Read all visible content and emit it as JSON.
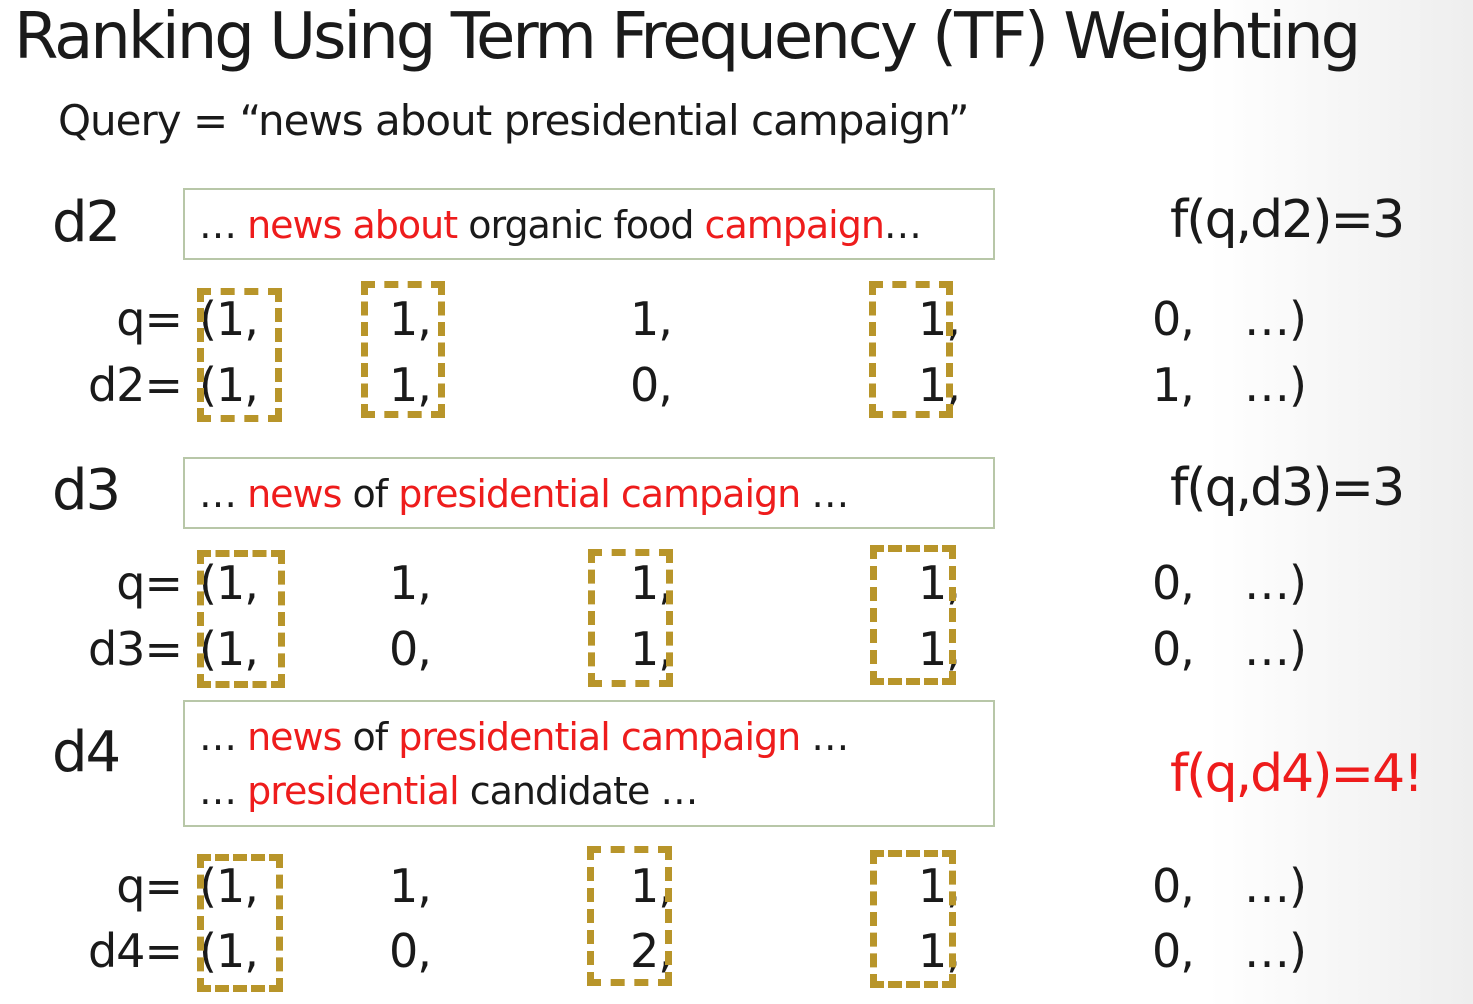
{
  "title": "Ranking Using Term Frequency (TF) Weighting",
  "query": "Query = “news about presidential campaign”",
  "docs": [
    {
      "label": "d2",
      "snippet_lines": [
        [
          {
            "text": "… ",
            "hl": false
          },
          {
            "text": "news about",
            "hl": true
          },
          {
            "text": " organic food ",
            "hl": false
          },
          {
            "text": "campaign",
            "hl": true
          },
          {
            "text": "…",
            "hl": false
          }
        ]
      ],
      "score": "f(q,d2)=3",
      "score_highlight": false,
      "q_label": "q=",
      "d_label": "d2=",
      "q_values": [
        "(1,",
        "1,",
        "1,",
        "1,",
        "0,",
        "…)"
      ],
      "d_values": [
        "(1,",
        "1,",
        "0,",
        "1,",
        "1,",
        "…)"
      ]
    },
    {
      "label": "d3",
      "snippet_lines": [
        [
          {
            "text": "… ",
            "hl": false
          },
          {
            "text": "news",
            "hl": true
          },
          {
            "text": " of ",
            "hl": false
          },
          {
            "text": "presidential campaign",
            "hl": true
          },
          {
            "text": " …",
            "hl": false
          }
        ]
      ],
      "score": "f(q,d3)=3",
      "score_highlight": false,
      "q_label": "q=",
      "d_label": "d3=",
      "q_values": [
        "(1,",
        "1,",
        "1,",
        "1,",
        "0,",
        "…)"
      ],
      "d_values": [
        "(1,",
        "0,",
        "1,",
        "1,",
        "0,",
        "…)"
      ]
    },
    {
      "label": "d4",
      "snippet_lines": [
        [
          {
            "text": "… ",
            "hl": false
          },
          {
            "text": "news",
            "hl": true
          },
          {
            "text": " of ",
            "hl": false
          },
          {
            "text": "presidential campaign",
            "hl": true
          },
          {
            "text": " …",
            "hl": false
          }
        ],
        [
          {
            "text": "… ",
            "hl": false
          },
          {
            "text": "presidential",
            "hl": true
          },
          {
            "text": " candidate …",
            "hl": false
          }
        ]
      ],
      "score": "f(q,d4)=4!",
      "score_highlight": true,
      "q_label": "q=",
      "d_label": "d4=",
      "q_values": [
        "(1,",
        "1,",
        "1,",
        "1,",
        "0,",
        "…)"
      ],
      "d_values": [
        "(1,",
        "0,",
        "2,",
        "1,",
        "0,",
        "…)"
      ]
    }
  ],
  "colors": {
    "highlight": "#ee1c1c",
    "match_box": "#b8952a",
    "snippet_border": "#b8c7a8"
  }
}
